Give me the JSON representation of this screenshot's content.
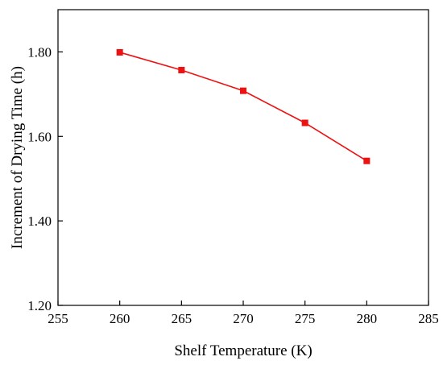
{
  "chart_data": {
    "type": "line",
    "title": "",
    "xlabel": "Shelf Temperature (K)",
    "ylabel": "Increment of  Drying Time (h)",
    "xlim": [
      255,
      285
    ],
    "ylim": [
      1.2,
      1.9
    ],
    "xticks": [
      255,
      260,
      265,
      270,
      275,
      280,
      285
    ],
    "yticks": [
      1.2,
      1.4,
      1.6,
      1.8
    ],
    "ytick_labels": [
      "1.20",
      "1.40",
      "1.60",
      "1.80"
    ],
    "grid": false,
    "series": [
      {
        "x": [
          260,
          265,
          270,
          275,
          280
        ],
        "values": [
          1.799,
          1.757,
          1.708,
          1.632,
          1.542
        ],
        "color": "#ee1111",
        "marker": "square"
      }
    ]
  }
}
